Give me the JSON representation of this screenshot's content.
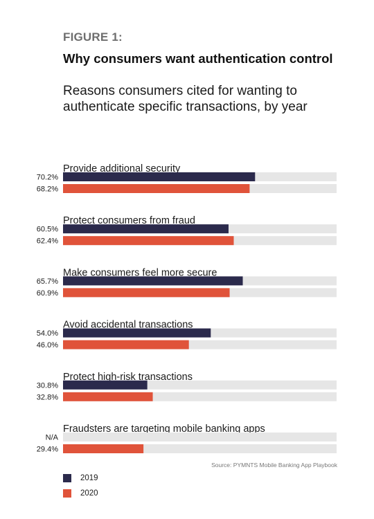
{
  "figure_label": "FIGURE 1:",
  "title": "Why consumers want authentication control",
  "subtitle": "Reasons consumers cited for wanting to authenticate specific transactions, by year",
  "source": "Source: PYMNTS Mobile Banking App Playbook",
  "colors": {
    "2019": "#2b2a4c",
    "2020": "#e0533a",
    "track": "#e6e6e6"
  },
  "chart_data": {
    "type": "bar",
    "orientation": "horizontal",
    "unit": "%",
    "xlim": [
      0,
      100
    ],
    "categories": [
      "Provide additional security",
      "Protect consumers from fraud",
      "Make consumers feel more secure",
      "Avoid accidental transactions",
      "Protect high-risk transactions",
      "Fraudsters are targeting mobile banking apps"
    ],
    "series": [
      {
        "name": "2019",
        "values": [
          70.2,
          60.5,
          65.7,
          54.0,
          30.8,
          null
        ],
        "labels": [
          "70.2%",
          "60.5%",
          "65.7%",
          "54.0%",
          "30.8%",
          "N/A"
        ]
      },
      {
        "name": "2020",
        "values": [
          68.2,
          62.4,
          60.9,
          46.0,
          32.8,
          29.4
        ],
        "labels": [
          "68.2%",
          "62.4%",
          "60.9%",
          "46.0%",
          "32.8%",
          "29.4%"
        ]
      }
    ],
    "legend_position": "bottom-left"
  }
}
